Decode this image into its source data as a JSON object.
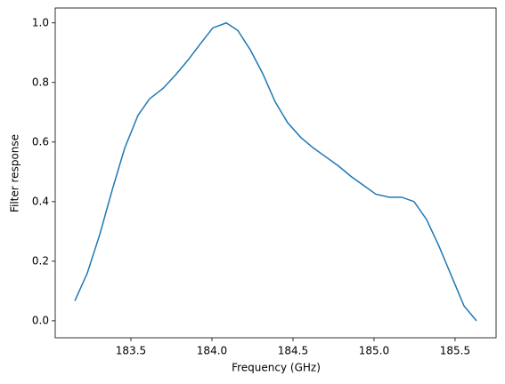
{
  "chart_data": {
    "type": "line",
    "x_label": "Frequency (GHz)",
    "y_label": "Filter response",
    "x": [
      183.154,
      183.231,
      183.308,
      183.385,
      183.462,
      183.544,
      183.615,
      183.698,
      183.775,
      183.852,
      183.929,
      184.005,
      184.088,
      184.159,
      184.236,
      184.313,
      184.39,
      184.467,
      184.549,
      184.626,
      184.703,
      184.78,
      184.857,
      184.934,
      185.011,
      185.093,
      185.17,
      185.247,
      185.324,
      185.401,
      185.478,
      185.555,
      185.632
    ],
    "series": [
      {
        "color": "#1f77b4",
        "values": [
          0.067,
          0.16,
          0.29,
          0.44,
          0.58,
          0.69,
          0.745,
          0.78,
          0.825,
          0.875,
          0.93,
          0.983,
          1.0,
          0.975,
          0.91,
          0.83,
          0.735,
          0.665,
          0.615,
          0.58,
          0.55,
          0.52,
          0.485,
          0.455,
          0.425,
          0.415,
          0.415,
          0.4,
          0.34,
          0.25,
          0.15,
          0.05,
          0.0
        ]
      }
    ],
    "xlim": [
      183.033,
      185.753
    ],
    "ylim": [
      -0.057,
      1.05
    ],
    "xticks": [
      183.5,
      {
        "value": 184,
        "label": "184.0"
      },
      184.5,
      {
        "value": 185,
        "label": "185.0"
      },
      185.5
    ],
    "yticks": [
      {
        "value": 0,
        "label": "0.0"
      },
      0.2,
      0.4,
      0.6,
      0.8,
      {
        "value": 1,
        "label": "1.0"
      }
    ],
    "grid": false
  }
}
